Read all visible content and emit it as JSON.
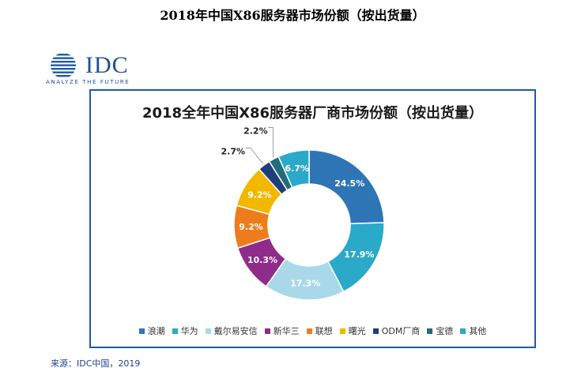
{
  "page": {
    "title": "2018年中国X86服务器市场份额（按出货量）",
    "source": "来源：IDC中国，2019"
  },
  "logo": {
    "name": "IDC",
    "tagline": "ANALYZE THE FUTURE"
  },
  "chart_data": {
    "type": "pie",
    "donut": true,
    "title": "2018全年中国X86服务器厂商市场份额（按出货量）",
    "legend_position": "bottom",
    "categories": [
      "浪潮",
      "华为",
      "戴尔易安信",
      "新华三",
      "联想",
      "曙光",
      "ODM厂商",
      "宝德",
      "其他"
    ],
    "values": [
      24.5,
      17.9,
      17.3,
      10.3,
      9.2,
      9.2,
      2.7,
      2.2,
      6.7
    ],
    "value_labels": [
      "24.5%",
      "17.9%",
      "17.3%",
      "10.3%",
      "9.2%",
      "9.2%",
      "2.7%",
      "2.2%",
      "6.7%"
    ],
    "colors": [
      "#2e75b6",
      "#2aa9c9",
      "#a9d9e8",
      "#8e2b8b",
      "#ed7d1c",
      "#f2b800",
      "#1f3f7a",
      "#236c7c",
      "#2aa9c9"
    ]
  }
}
